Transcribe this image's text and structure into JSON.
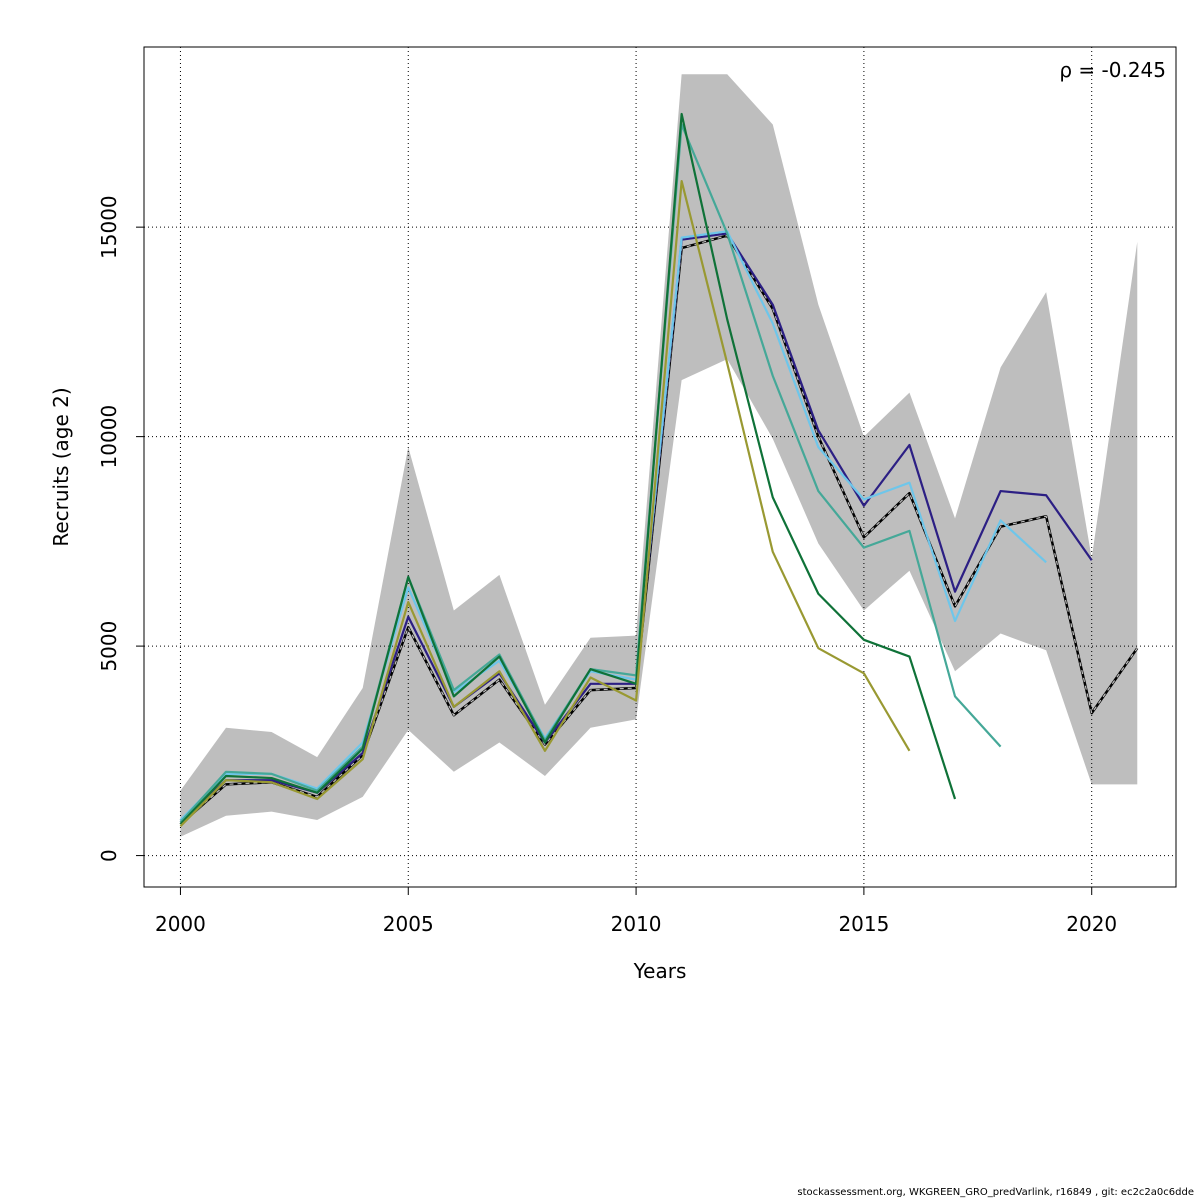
{
  "chart_data": {
    "type": "line",
    "xlabel": "Years",
    "ylabel": "Recruits (age 2)",
    "xlim": [
      1999.2,
      2021.85
    ],
    "ylim": [
      -750,
      19300
    ],
    "x_ticks": [
      2000,
      2005,
      2010,
      2015,
      2020
    ],
    "y_ticks": [
      0,
      5000,
      10000,
      15000
    ],
    "grid": true,
    "annotation": "ρ = -0.245",
    "confidence_band": {
      "x": [
        2000,
        2001,
        2002,
        2003,
        2004,
        2005,
        2006,
        2007,
        2008,
        2009,
        2010,
        2011,
        2012,
        2013,
        2014,
        2015,
        2016,
        2017,
        2018,
        2019,
        2020,
        2021
      ],
      "upper": [
        1550,
        3050,
        2950,
        2350,
        4000,
        9750,
        5850,
        6700,
        3600,
        5200,
        5250,
        18650,
        18650,
        17450,
        13150,
        10000,
        11050,
        8050,
        11650,
        13450,
        7100,
        14650
      ],
      "lower": [
        450,
        950,
        1050,
        850,
        1400,
        3000,
        2000,
        2700,
        1900,
        3050,
        3250,
        11350,
        11850,
        9950,
        7450,
        5850,
        6800,
        4400,
        5300,
        4900,
        1700,
        1700
      ],
      "color": "#bebebe"
    },
    "series": [
      {
        "color": "#000000",
        "dashed": true,
        "x": [
          2000,
          2001,
          2002,
          2003,
          2004,
          2005,
          2006,
          2007,
          2008,
          2009,
          2010,
          2011,
          2012,
          2013,
          2014,
          2015,
          2016,
          2017,
          2018,
          2019,
          2020,
          2021
        ],
        "values": [
          750,
          1700,
          1750,
          1400,
          2400,
          5450,
          3350,
          4200,
          2650,
          3950,
          4000,
          14500,
          14800,
          13050,
          10000,
          7600,
          8650,
          5950,
          7850,
          8100,
          3400,
          4950
        ]
      },
      {
        "color": "#2c1f84",
        "x": [
          2000,
          2001,
          2002,
          2003,
          2004,
          2005,
          2006,
          2007,
          2008,
          2009,
          2010,
          2011,
          2012,
          2013,
          2014,
          2015,
          2016,
          2017,
          2018,
          2019,
          2020
        ],
        "values": [
          800,
          1800,
          1800,
          1500,
          2450,
          5700,
          3550,
          4350,
          2700,
          4100,
          4100,
          14700,
          14850,
          13150,
          10150,
          8350,
          9800,
          6300,
          8700,
          8600,
          7050
        ]
      },
      {
        "color": "#6ec6ea",
        "x": [
          2000,
          2001,
          2002,
          2003,
          2004,
          2005,
          2006,
          2007,
          2008,
          2009,
          2010,
          2011,
          2012,
          2013,
          2014,
          2015,
          2016,
          2017,
          2018,
          2019
        ],
        "values": [
          850,
          1950,
          1950,
          1600,
          2700,
          6400,
          3900,
          4650,
          2800,
          4400,
          4200,
          14750,
          14900,
          12700,
          9750,
          8500,
          8900,
          5600,
          8000,
          7000
        ]
      },
      {
        "color": "#45a898",
        "x": [
          2000,
          2001,
          2002,
          2003,
          2004,
          2005,
          2006,
          2007,
          2008,
          2009,
          2010,
          2011,
          2012,
          2013,
          2014,
          2015,
          2016,
          2017,
          2018
        ],
        "values": [
          800,
          2000,
          1950,
          1550,
          2600,
          6650,
          3950,
          4800,
          2750,
          4450,
          4300,
          17450,
          14850,
          11450,
          8700,
          7350,
          7750,
          3800,
          2600
        ]
      },
      {
        "color": "#0f7238",
        "x": [
          2000,
          2001,
          2002,
          2003,
          2004,
          2005,
          2006,
          2007,
          2008,
          2009,
          2010,
          2011,
          2012,
          2013,
          2014,
          2015,
          2016,
          2017
        ],
        "values": [
          750,
          1900,
          1850,
          1500,
          2550,
          6650,
          3800,
          4750,
          2700,
          4450,
          4100,
          17700,
          12800,
          8550,
          6250,
          5150,
          4750,
          1350
        ]
      },
      {
        "color": "#999932",
        "x": [
          2000,
          2001,
          2002,
          2003,
          2004,
          2005,
          2006,
          2007,
          2008,
          2009,
          2010,
          2011,
          2012,
          2013,
          2014,
          2015,
          2016
        ],
        "values": [
          700,
          1800,
          1750,
          1350,
          2300,
          6050,
          3550,
          4400,
          2500,
          4250,
          3700,
          16100,
          11750,
          7250,
          4950,
          4350,
          2500
        ]
      }
    ]
  },
  "footer": "stockassessment.org, WKGREEN_GRO_predVarlink, r16849 , git: ec2c2a0c6dde"
}
